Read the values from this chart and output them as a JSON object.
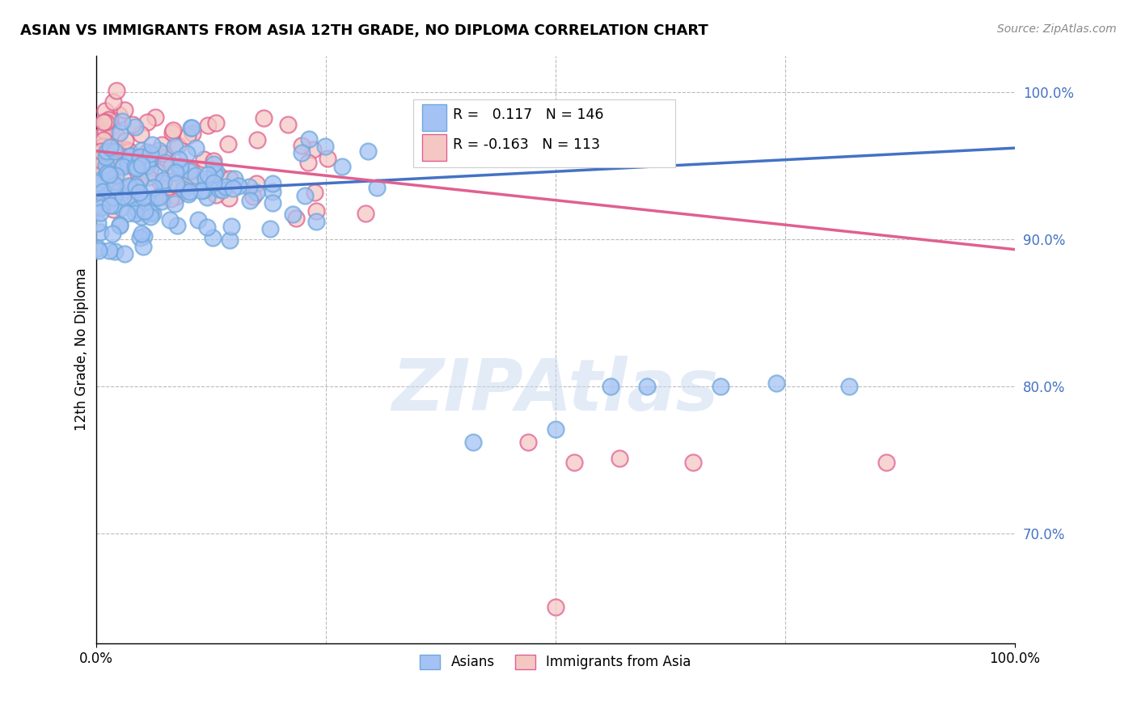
{
  "title": "ASIAN VS IMMIGRANTS FROM ASIA 12TH GRADE, NO DIPLOMA CORRELATION CHART",
  "source": "Source: ZipAtlas.com",
  "ylabel": "12th Grade, No Diploma",
  "right_yticks": [
    "70.0%",
    "80.0%",
    "90.0%",
    "100.0%"
  ],
  "right_ytick_vals": [
    0.7,
    0.8,
    0.9,
    1.0
  ],
  "xlim": [
    0.0,
    1.0
  ],
  "ylim": [
    0.625,
    1.025
  ],
  "blue_R": 0.117,
  "blue_N": 146,
  "pink_R": -0.163,
  "pink_N": 113,
  "blue_face_color": "#a4c2f4",
  "blue_edge_color": "#6fa8dc",
  "pink_face_color": "#f4c7c3",
  "pink_edge_color": "#e06090",
  "blue_line_color": "#4472c4",
  "pink_line_color": "#e06090",
  "legend_label_blue": "Asians",
  "legend_label_pink": "Immigrants from Asia",
  "watermark": "ZIPAtlas",
  "background_color": "#ffffff",
  "grid_color": "#bbbbbb",
  "blue_line_y0": 0.93,
  "blue_line_y1": 0.962,
  "pink_line_y0": 0.96,
  "pink_line_y1": 0.893
}
